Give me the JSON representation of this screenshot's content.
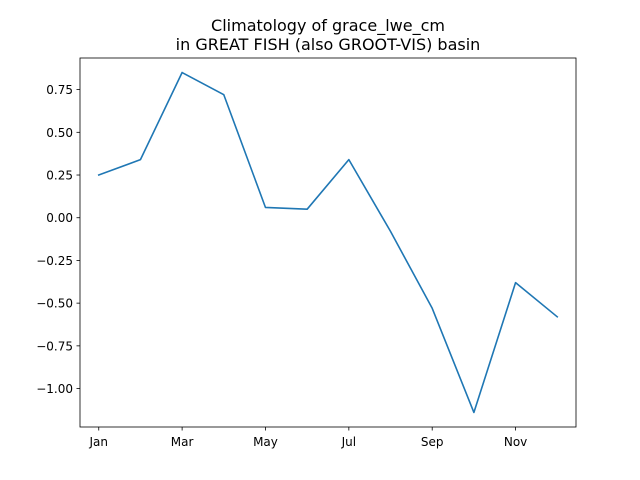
{
  "chart_data": {
    "type": "line",
    "title_line1": "Climatology of grace_lwe_cm",
    "title_line2": "in GREAT FISH (also GROOT-VIS) basin",
    "xlabel": "",
    "ylabel": "",
    "x": [
      1,
      2,
      3,
      4,
      5,
      6,
      7,
      8,
      9,
      10,
      11,
      12
    ],
    "x_ticks": [
      1,
      3,
      5,
      7,
      9,
      11
    ],
    "x_tick_labels": [
      "Jan",
      "Mar",
      "May",
      "Jul",
      "Sep",
      "Nov"
    ],
    "xlim": [
      0.55,
      12.45
    ],
    "y_ticks": [
      0.75,
      0.5,
      0.25,
      0.0,
      -0.25,
      -0.5,
      -0.75,
      -1.0
    ],
    "y_tick_labels": [
      "0.75",
      "0.50",
      "0.25",
      "0.00",
      "−0.25",
      "−0.50",
      "−0.75",
      "−1.00"
    ],
    "ylim": [
      -1.225,
      0.935
    ],
    "grid": false,
    "series": [
      {
        "color": "#1f77b4",
        "values": [
          0.25,
          0.34,
          0.85,
          0.72,
          0.06,
          0.05,
          0.34,
          -0.08,
          -0.53,
          -1.14,
          -0.38,
          -0.58
        ]
      }
    ]
  }
}
